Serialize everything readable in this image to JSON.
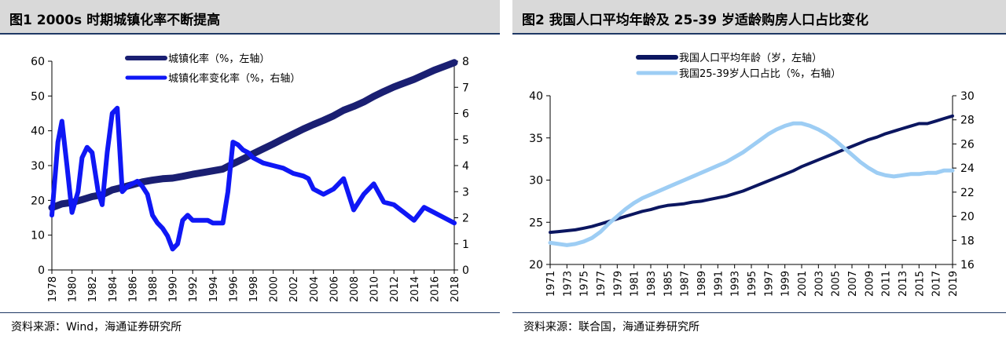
{
  "charts": [
    {
      "figure_title": "图1   2000s 时期城镇化率不断提高",
      "source": "资料来源：Wind，海通证券研究所",
      "chart_data": {
        "type": "line",
        "colors": {
          "series0": "#1a1f72",
          "series1": "#0f17f5"
        },
        "legend_position": "top-right",
        "grid": false,
        "x_ticks": [
          "1978",
          "1980",
          "1982",
          "1984",
          "1986",
          "1988",
          "1990",
          "1992",
          "1994",
          "1996",
          "1998",
          "2000",
          "2002",
          "2004",
          "2006",
          "2008",
          "2010",
          "2012",
          "2014",
          "2016",
          "2018"
        ],
        "xlim": [
          1978,
          2018
        ],
        "y_left": {
          "min": 0,
          "max": 60,
          "ticks": [
            "0",
            "10",
            "20",
            "30",
            "40",
            "50",
            "60"
          ]
        },
        "y_right": {
          "min": 0,
          "max": 8,
          "ticks": [
            "0",
            "1",
            "2",
            "3",
            "4",
            "5",
            "6",
            "7",
            "8"
          ]
        },
        "series": [
          {
            "name": "城镇化率（%，左轴）",
            "axis": "left",
            "x": [
              1978,
              1979,
              1980,
              1981,
              1982,
              1983,
              1984,
              1985,
              1986,
              1987,
              1988,
              1989,
              1990,
              1991,
              1992,
              1993,
              1994,
              1995,
              1996,
              1997,
              1998,
              1999,
              2000,
              2001,
              2002,
              2003,
              2004,
              2005,
              2006,
              2007,
              2008,
              2009,
              2010,
              2011,
              2012,
              2013,
              2014,
              2015,
              2016,
              2017,
              2018
            ],
            "values": [
              17.9,
              19.0,
              19.4,
              20.2,
              21.1,
              21.6,
              23.0,
              23.7,
              24.5,
              25.3,
              25.8,
              26.2,
              26.4,
              26.9,
              27.5,
              28.0,
              28.5,
              29.0,
              30.5,
              31.9,
              33.4,
              34.8,
              36.2,
              37.7,
              39.1,
              40.5,
              41.8,
              43.0,
              44.3,
              45.9,
              47.0,
              48.3,
              49.9,
              51.3,
              52.6,
              53.7,
              54.8,
              56.1,
              57.4,
              58.5,
              59.6
            ]
          },
          {
            "name": "城镇化率变化率（%，右轴）",
            "axis": "right",
            "x": [
              1978,
              1978.6,
              1979,
              1979.5,
              1980,
              1980.6,
              1981,
              1981.5,
              1982,
              1982.6,
              1983,
              1983.5,
              1984,
              1984.5,
              1985,
              1985.5,
              1986,
              1986.5,
              1987,
              1987.5,
              1988,
              1988.5,
              1989,
              1989.5,
              1990,
              1990.5,
              1991,
              1991.5,
              1992,
              1992.5,
              1993,
              1993.5,
              1994,
              1994.5,
              1995,
              1995.5,
              1996,
              1996.5,
              1997,
              1997.5,
              1998,
              1999,
              2000,
              2001,
              2002,
              2003,
              2003.5,
              2004,
              2005,
              2006,
              2006.5,
              2007,
              2008,
              2009,
              2010,
              2011,
              2012,
              2013,
              2014,
              2015,
              2016,
              2017,
              2018
            ],
            "values": [
              2.1,
              4.9,
              5.7,
              4.0,
              2.2,
              3.0,
              4.3,
              4.7,
              4.5,
              3.0,
              2.5,
              4.5,
              6.0,
              6.2,
              3.0,
              3.2,
              3.3,
              3.4,
              3.2,
              2.9,
              2.1,
              1.8,
              1.6,
              1.3,
              0.8,
              1.0,
              1.9,
              2.1,
              1.9,
              1.9,
              1.9,
              1.9,
              1.8,
              1.8,
              1.8,
              3.0,
              4.9,
              4.8,
              4.6,
              4.5,
              4.3,
              4.1,
              4.0,
              3.9,
              3.7,
              3.6,
              3.5,
              3.1,
              2.9,
              3.1,
              3.3,
              3.5,
              2.3,
              2.9,
              3.3,
              2.6,
              2.5,
              2.2,
              1.9,
              2.4,
              2.2,
              2.0,
              1.8
            ]
          }
        ]
      }
    },
    {
      "figure_title": "图2   我国人口平均年龄及 25-39 岁适龄购房人口占比变化",
      "source": "资料来源：联合国，海通证券研究所",
      "chart_data": {
        "type": "line",
        "colors": {
          "series0": "#0b1660",
          "series1": "#9dcdf4"
        },
        "legend_position": "top-left",
        "grid": false,
        "x_ticks": [
          "1971",
          "1973",
          "1975",
          "1977",
          "1979",
          "1981",
          "1983",
          "1985",
          "1987",
          "1989",
          "1991",
          "1993",
          "1995",
          "1997",
          "1999",
          "2001",
          "2003",
          "2005",
          "2007",
          "2009",
          "2011",
          "2013",
          "2015",
          "2017",
          "2019"
        ],
        "xlim": [
          1971,
          2019
        ],
        "y_left": {
          "min": 20,
          "max": 40,
          "ticks": [
            "20",
            "25",
            "30",
            "35",
            "40"
          ]
        },
        "y_right": {
          "min": 16,
          "max": 30,
          "ticks": [
            "16",
            "18",
            "20",
            "22",
            "24",
            "26",
            "28",
            "30"
          ]
        },
        "series": [
          {
            "name": "我国人口平均年龄（岁，左轴）",
            "axis": "left",
            "x": [
              1971,
              1972,
              1973,
              1974,
              1975,
              1976,
              1977,
              1978,
              1979,
              1980,
              1981,
              1982,
              1983,
              1984,
              1985,
              1986,
              1987,
              1988,
              1989,
              1990,
              1991,
              1992,
              1993,
              1994,
              1995,
              1996,
              1997,
              1998,
              1999,
              2000,
              2001,
              2002,
              2003,
              2004,
              2005,
              2006,
              2007,
              2008,
              2009,
              2010,
              2011,
              2012,
              2013,
              2014,
              2015,
              2016,
              2017,
              2018,
              2019
            ],
            "values": [
              23.8,
              23.9,
              24.0,
              24.1,
              24.3,
              24.5,
              24.8,
              25.1,
              25.4,
              25.7,
              26.0,
              26.3,
              26.5,
              26.8,
              27.0,
              27.1,
              27.2,
              27.4,
              27.5,
              27.7,
              27.9,
              28.1,
              28.4,
              28.7,
              29.1,
              29.5,
              29.9,
              30.3,
              30.7,
              31.1,
              31.6,
              32.0,
              32.4,
              32.8,
              33.2,
              33.6,
              34.0,
              34.4,
              34.8,
              35.1,
              35.5,
              35.8,
              36.1,
              36.4,
              36.7,
              36.7,
              37.0,
              37.3,
              37.6
            ]
          },
          {
            "name": "我国25-39岁人口占比（%，右轴）",
            "axis": "right",
            "x": [
              1971,
              1972,
              1973,
              1974,
              1975,
              1976,
              1977,
              1978,
              1979,
              1980,
              1981,
              1982,
              1983,
              1984,
              1985,
              1986,
              1987,
              1988,
              1989,
              1990,
              1991,
              1992,
              1993,
              1994,
              1995,
              1996,
              1997,
              1998,
              1999,
              2000,
              2001,
              2002,
              2003,
              2004,
              2005,
              2006,
              2007,
              2008,
              2009,
              2010,
              2011,
              2012,
              2013,
              2014,
              2015,
              2016,
              2017,
              2018,
              2019
            ],
            "values": [
              17.8,
              17.7,
              17.6,
              17.7,
              17.9,
              18.2,
              18.7,
              19.4,
              20.0,
              20.6,
              21.1,
              21.5,
              21.8,
              22.1,
              22.4,
              22.7,
              23.0,
              23.3,
              23.6,
              23.9,
              24.2,
              24.5,
              24.9,
              25.3,
              25.8,
              26.3,
              26.8,
              27.2,
              27.5,
              27.7,
              27.7,
              27.5,
              27.2,
              26.8,
              26.3,
              25.7,
              25.1,
              24.5,
              24.0,
              23.6,
              23.4,
              23.3,
              23.4,
              23.5,
              23.5,
              23.6,
              23.6,
              23.8,
              23.8
            ]
          }
        ]
      }
    }
  ]
}
